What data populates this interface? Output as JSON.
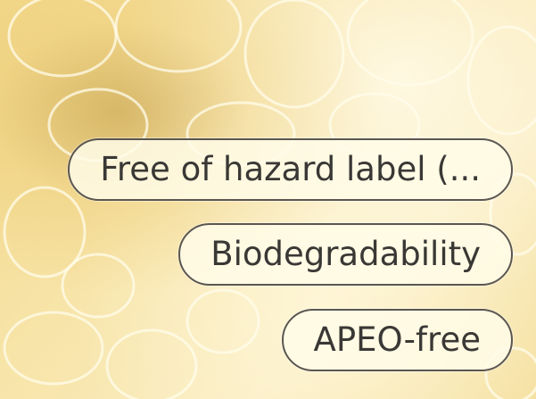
{
  "labels": [
    "Free of hazard label (...",
    "Biodegradability",
    "APEO-free"
  ]
}
